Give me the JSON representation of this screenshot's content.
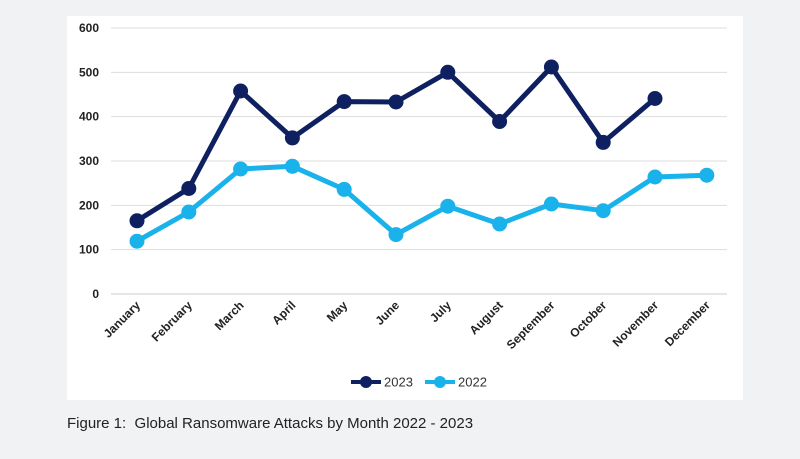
{
  "figure": {
    "caption": "Figure 1:  Global Ransomware Attacks by Month 2022 - 2023"
  },
  "colors": {
    "series_2023": "#0f2060",
    "series_2022": "#1ab2ea",
    "grid": "#dddddd",
    "axis": "#cccccc"
  },
  "chart_data": {
    "type": "line",
    "title": "",
    "xlabel": "",
    "ylabel": "",
    "ylim": [
      0,
      600
    ],
    "yticks": [
      0,
      100,
      200,
      300,
      400,
      500,
      600
    ],
    "grid": true,
    "legend_position": "bottom-center",
    "categories": [
      "January",
      "February",
      "March",
      "April",
      "May",
      "June",
      "July",
      "August",
      "September",
      "October",
      "November",
      "December"
    ],
    "series": [
      {
        "name": "2023",
        "color": "#0f2060",
        "values": [
          165,
          238,
          458,
          352,
          434,
          433,
          500,
          389,
          512,
          342,
          441,
          null
        ]
      },
      {
        "name": "2022",
        "color": "#1ab2ea",
        "values": [
          119,
          185,
          282,
          288,
          236,
          134,
          198,
          158,
          203,
          188,
          264,
          268
        ]
      }
    ]
  }
}
